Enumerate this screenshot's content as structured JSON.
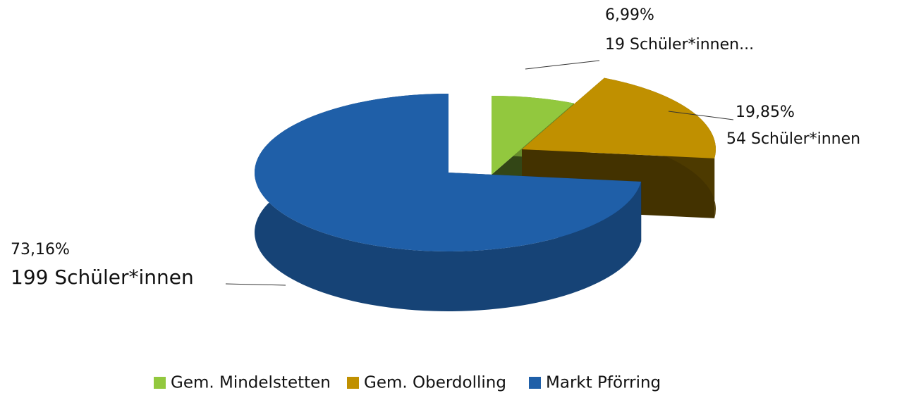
{
  "chart_data": {
    "type": "pie",
    "categories": [
      "Gem. Mindelstetten",
      "Gem. Oberdolling",
      "Markt Pförring"
    ],
    "values": [
      6.99,
      19.85,
      73.16
    ],
    "value_labels": [
      "6,99%",
      "19,85%",
      "73,16%"
    ],
    "annotations": [
      "19 Schüler*innen...",
      "54 Schüler*innen",
      "199 Schüler*innen"
    ],
    "colors": [
      "#92c83e",
      "#c09000",
      "#1f5fa8"
    ],
    "legend": "bottom"
  }
}
